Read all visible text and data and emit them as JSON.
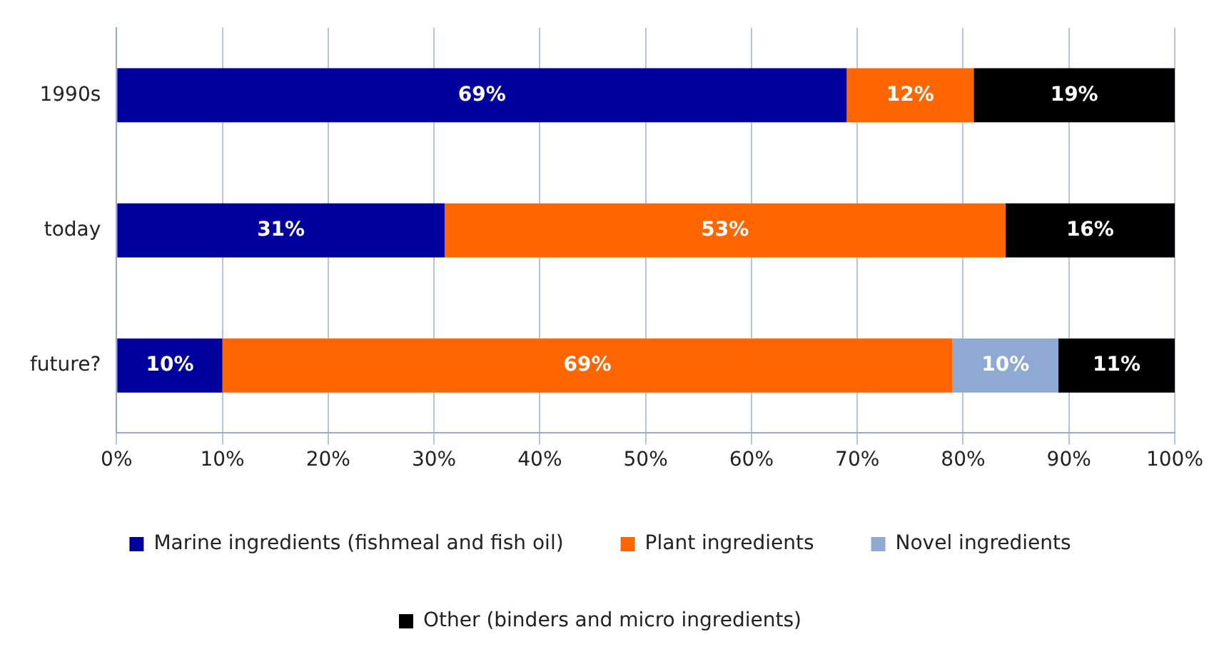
{
  "chart_data": {
    "type": "bar",
    "orientation": "horizontal",
    "stacked": true,
    "categories": [
      "1990s",
      "today",
      "future?"
    ],
    "series": [
      {
        "name": "Marine ingredients (fishmeal and fish oil)",
        "color": "#00009c",
        "values": [
          69,
          31,
          10
        ],
        "value_labels": [
          "69%",
          "31%",
          "10%"
        ]
      },
      {
        "name": "Plant ingredients",
        "color": "#ff6600",
        "values": [
          12,
          53,
          69
        ],
        "value_labels": [
          "12%",
          "53%",
          "69%"
        ]
      },
      {
        "name": "Novel ingredients",
        "color": "#8eaad2",
        "values": [
          null,
          null,
          10
        ],
        "value_labels": [
          null,
          null,
          "10%"
        ]
      },
      {
        "name": "Other (binders and micro ingredients)",
        "color": "#000000",
        "values": [
          19,
          16,
          11
        ],
        "value_labels": [
          "19%",
          "16%",
          "11%"
        ]
      }
    ],
    "xlim": [
      0,
      100
    ],
    "xticks": [
      {
        "value": 0,
        "label": "0%"
      },
      {
        "value": 10,
        "label": "10%"
      },
      {
        "value": 20,
        "label": "20%"
      },
      {
        "value": 30,
        "label": "30%"
      },
      {
        "value": 40,
        "label": "40%"
      },
      {
        "value": 50,
        "label": "50%"
      },
      {
        "value": 60,
        "label": "60%"
      },
      {
        "value": 70,
        "label": "70%"
      },
      {
        "value": 80,
        "label": "80%"
      },
      {
        "value": 90,
        "label": "90%"
      },
      {
        "value": 100,
        "label": "100%"
      }
    ],
    "grid": "x",
    "legend": "bottom"
  }
}
